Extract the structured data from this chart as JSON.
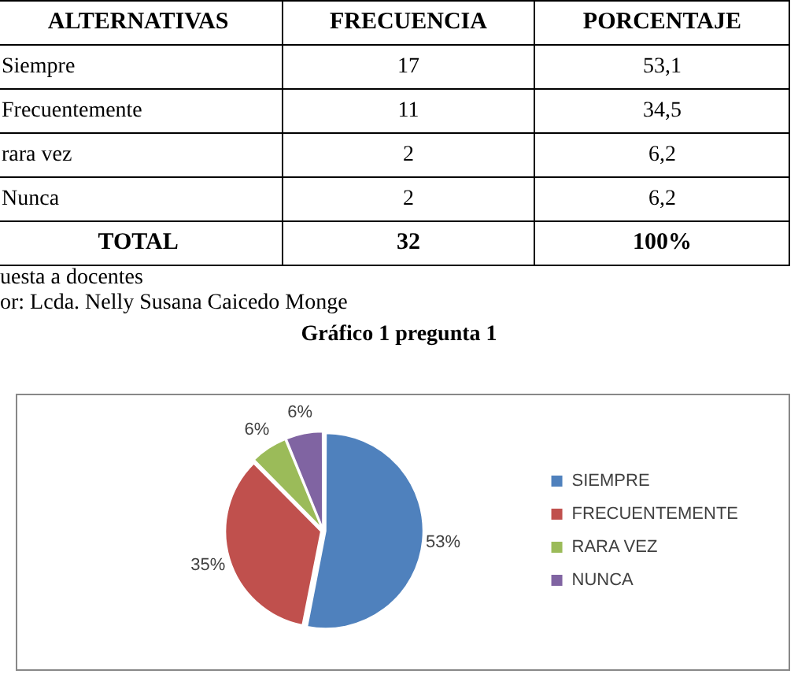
{
  "chart_data": {
    "type": "pie",
    "title": "Gráfico 1 pregunta 1",
    "categories": [
      "SIEMPRE",
      "FRECUENTEMENTE",
      "RARA VEZ",
      "NUNCA"
    ],
    "values": [
      53.1,
      34.5,
      6.2,
      6.2
    ],
    "colors": [
      "#4f81bd",
      "#c0504d",
      "#9bbb59",
      "#8064a2"
    ],
    "value_labels": [
      "53%",
      "35%",
      "6%",
      "6%"
    ],
    "legend": "right",
    "annotations": [
      "ALTERNATIVAS",
      "FRECUENCIA",
      "PORCENTAJE",
      "Siempre",
      "17",
      "53,1",
      "Frecuentemente",
      "11",
      "34,5",
      "rara vez",
      "2",
      "6,2",
      "Nunca",
      "2",
      "6,2",
      "TOTAL",
      "32",
      "100%",
      "uesta a docentes",
      "or: Lcda. Nelly Susana Caicedo Monge"
    ]
  }
}
